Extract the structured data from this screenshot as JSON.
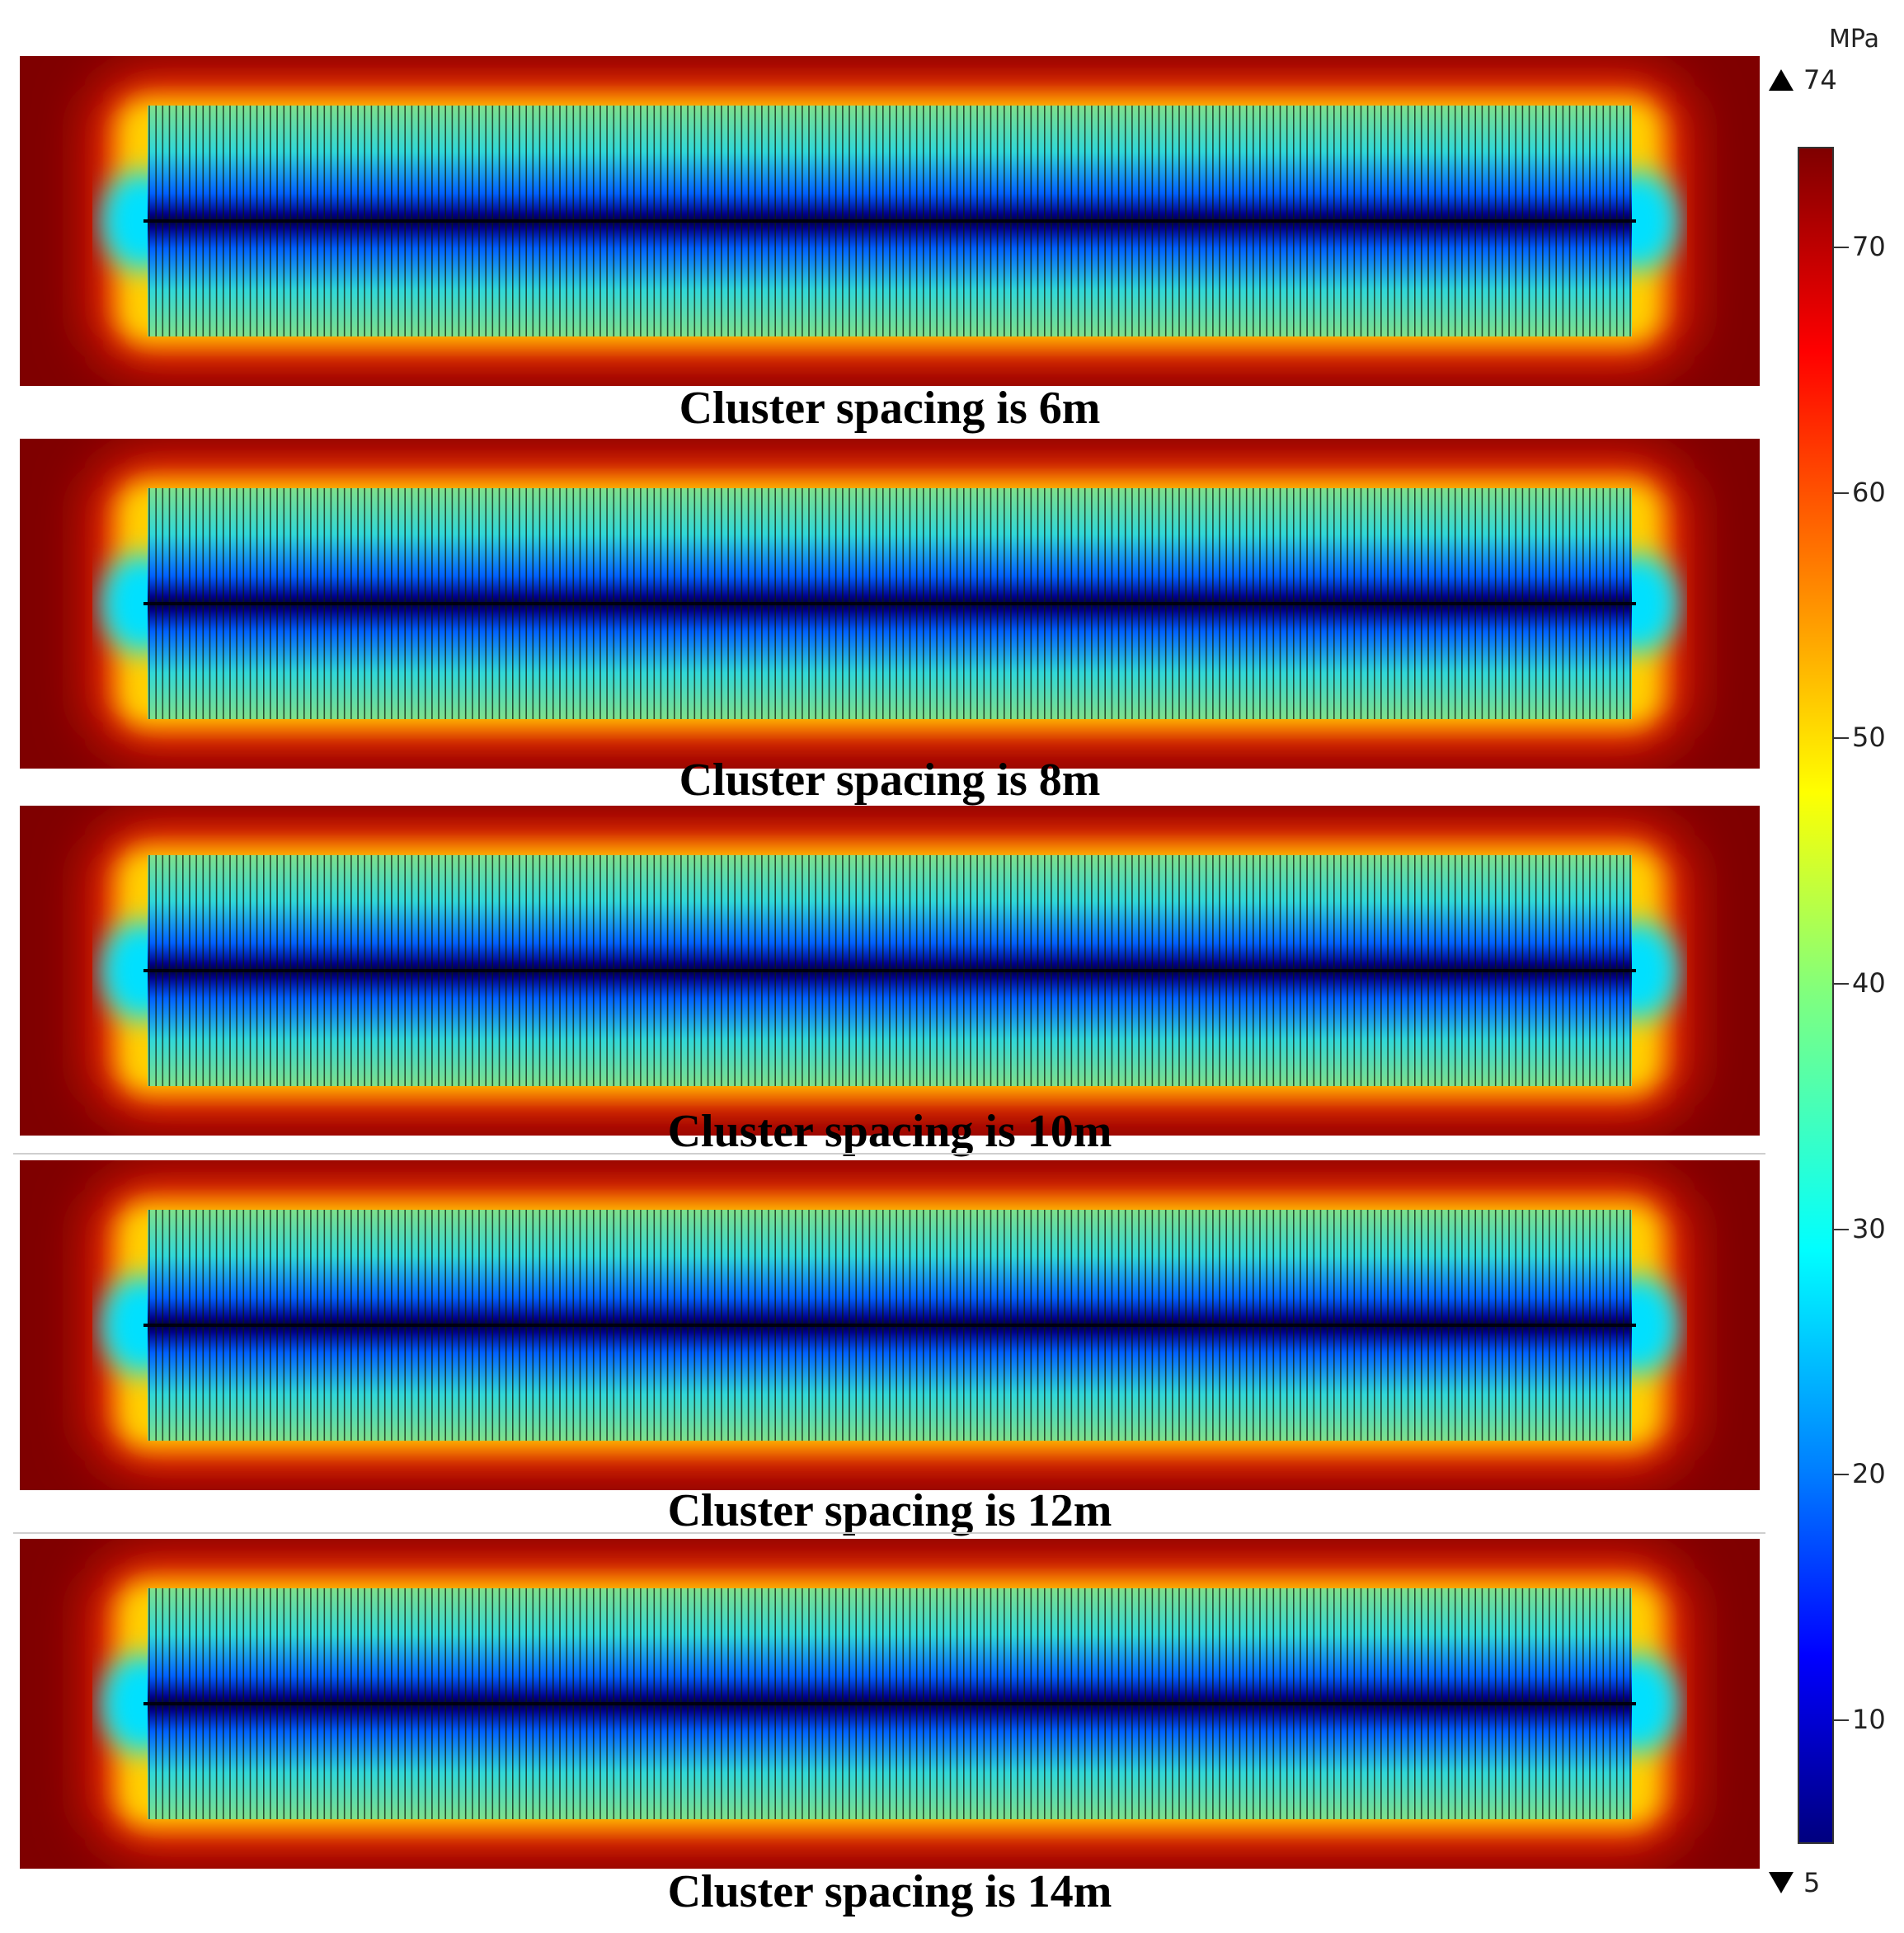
{
  "panels": [
    {
      "caption": "Cluster spacing is 6m"
    },
    {
      "caption": "Cluster spacing is 8m"
    },
    {
      "caption": "Cluster spacing is 10m"
    },
    {
      "caption": "Cluster spacing is 12m"
    },
    {
      "caption": "Cluster spacing is 14m"
    }
  ],
  "colorbar": {
    "unit": "MPa",
    "max_label": "74",
    "min_label": "5",
    "min": 5,
    "max": 74,
    "ticks": [
      "70",
      "60",
      "50",
      "40",
      "30",
      "20",
      "10"
    ],
    "tick_values": [
      70,
      60,
      50,
      40,
      30,
      20,
      10
    ],
    "colormap": "jet",
    "colors": [
      "#00007f",
      "#0000ff",
      "#007fff",
      "#00ffff",
      "#7fff7f",
      "#ffff00",
      "#ff7f00",
      "#ff0000",
      "#7f0000"
    ]
  }
}
